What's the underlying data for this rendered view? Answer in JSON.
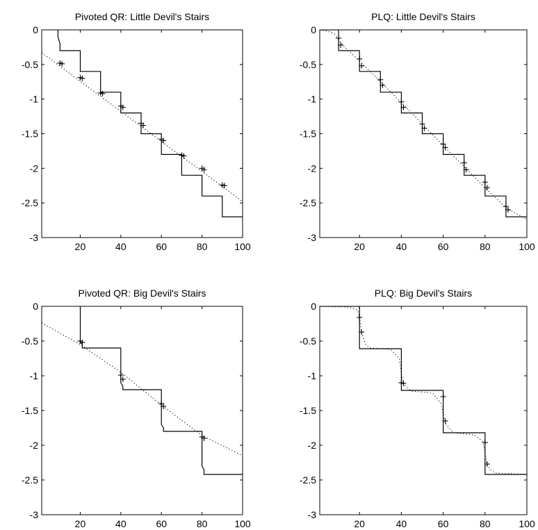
{
  "chart_data": [
    {
      "type": "line",
      "title": "Pivoted QR: Little Devil's Stairs",
      "xlim": [
        1,
        100
      ],
      "ylim": [
        -3,
        0
      ],
      "xticks": [
        20,
        40,
        60,
        80,
        100
      ],
      "yticks": [
        0,
        -0.5,
        -1,
        -1.5,
        -2,
        -2.5,
        -3
      ],
      "grid": false,
      "series": [
        {
          "style": "solid",
          "x": [
            9,
            9,
            10,
            10,
            20,
            20,
            30,
            30,
            40,
            40,
            50,
            50,
            60,
            60,
            70,
            70,
            80,
            80,
            90,
            90,
            100
          ],
          "y": [
            0,
            -0.1,
            -0.2,
            -0.3,
            -0.3,
            -0.6,
            -0.6,
            -0.9,
            -0.9,
            -1.2,
            -1.2,
            -1.5,
            -1.5,
            -1.8,
            -1.8,
            -2.1,
            -2.1,
            -2.4,
            -2.4,
            -2.7,
            -2.7
          ]
        },
        {
          "style": "dotted",
          "x": [
            1,
            100
          ],
          "y": [
            -0.33,
            -2.48
          ]
        },
        {
          "style": "markers",
          "x": [
            10,
            11,
            20,
            21,
            30,
            31,
            40,
            41,
            50,
            51,
            60,
            61,
            70,
            71,
            80,
            81,
            90,
            91
          ],
          "y": [
            -0.48,
            -0.49,
            -0.69,
            -0.7,
            -0.91,
            -0.92,
            -1.1,
            -1.12,
            -1.35,
            -1.38,
            -1.58,
            -1.6,
            -1.81,
            -1.82,
            -2.0,
            -2.02,
            -2.24,
            -2.25
          ]
        }
      ]
    },
    {
      "type": "line",
      "title": "PLQ: Little Devil's Stairs",
      "xlim": [
        1,
        100
      ],
      "ylim": [
        -3,
        0
      ],
      "xticks": [
        20,
        40,
        60,
        80,
        100
      ],
      "yticks": [
        0,
        -0.5,
        -1,
        -1.5,
        -2,
        -2.5,
        -3
      ],
      "grid": false,
      "series": [
        {
          "style": "solid",
          "x": [
            1,
            10,
            10,
            20,
            20,
            30,
            30,
            40,
            40,
            50,
            50,
            60,
            60,
            70,
            70,
            80,
            80,
            90,
            90,
            100
          ],
          "y": [
            0,
            0,
            -0.3,
            -0.3,
            -0.6,
            -0.6,
            -0.9,
            -0.9,
            -1.2,
            -1.2,
            -1.5,
            -1.5,
            -1.8,
            -1.8,
            -2.1,
            -2.1,
            -2.4,
            -2.4,
            -2.7,
            -2.7
          ]
        },
        {
          "style": "dotted",
          "x": [
            1,
            5,
            8,
            10,
            12,
            20,
            30,
            40,
            50,
            60,
            70,
            80,
            90,
            100
          ],
          "y": [
            0,
            -0.02,
            -0.06,
            -0.14,
            -0.22,
            -0.45,
            -0.75,
            -1.05,
            -1.36,
            -1.67,
            -1.98,
            -2.28,
            -2.57,
            -2.74
          ]
        },
        {
          "style": "markers",
          "x": [
            10,
            11,
            20,
            21,
            30,
            31,
            40,
            41,
            50,
            51,
            60,
            61,
            70,
            71,
            80,
            81,
            90,
            91
          ],
          "y": [
            -0.12,
            -0.22,
            -0.42,
            -0.52,
            -0.72,
            -0.8,
            -1.04,
            -1.12,
            -1.36,
            -1.42,
            -1.65,
            -1.7,
            -1.92,
            -2.02,
            -2.2,
            -2.28,
            -2.55,
            -2.6
          ]
        }
      ]
    },
    {
      "type": "line",
      "title": "Pivoted QR: Big Devil's Stairs",
      "xlim": [
        1,
        100
      ],
      "ylim": [
        -3,
        0
      ],
      "xticks": [
        20,
        40,
        60,
        80,
        100
      ],
      "yticks": [
        0,
        -0.5,
        -1,
        -1.5,
        -2,
        -2.5,
        -3
      ],
      "grid": false,
      "series": [
        {
          "style": "solid",
          "x": [
            20,
            20,
            21,
            21,
            40,
            40,
            41,
            41,
            60,
            60,
            61,
            61,
            80,
            80,
            81,
            81,
            100
          ],
          "y": [
            0,
            -0.5,
            -0.55,
            -0.6,
            -0.6,
            -1.1,
            -1.15,
            -1.2,
            -1.2,
            -1.7,
            -1.75,
            -1.8,
            -1.8,
            -2.3,
            -2.35,
            -2.42,
            -2.42
          ]
        },
        {
          "style": "dotted",
          "x": [
            1,
            20,
            40,
            60,
            80,
            100
          ],
          "y": [
            -0.24,
            -0.55,
            -0.95,
            -1.42,
            -1.86,
            -2.15
          ]
        },
        {
          "style": "markers",
          "x": [
            20,
            21,
            40,
            41,
            60,
            61,
            80,
            81
          ],
          "y": [
            -0.5,
            -0.52,
            -0.99,
            -1.05,
            -1.4,
            -1.44,
            -1.88,
            -1.9
          ]
        }
      ]
    },
    {
      "type": "line",
      "title": "PLQ: Big Devil's Stairs",
      "xlim": [
        1,
        100
      ],
      "ylim": [
        -3,
        0
      ],
      "xticks": [
        20,
        40,
        60,
        80,
        100
      ],
      "yticks": [
        0,
        -0.5,
        -1,
        -1.5,
        -2,
        -2.5,
        -3
      ],
      "grid": false,
      "series": [
        {
          "style": "solid",
          "x": [
            1,
            20,
            20,
            40,
            40,
            60,
            60,
            80,
            80,
            100
          ],
          "y": [
            0,
            0,
            -0.61,
            -0.61,
            -1.21,
            -1.21,
            -1.82,
            -1.82,
            -2.42,
            -2.42
          ]
        },
        {
          "style": "dotted",
          "x": [
            1,
            15,
            19,
            20,
            21,
            23,
            25,
            35,
            39,
            40,
            41,
            43,
            45,
            55,
            59,
            60,
            61,
            63,
            65,
            75,
            79,
            80,
            81,
            83,
            85,
            100
          ],
          "y": [
            0,
            -0.01,
            -0.05,
            -0.15,
            -0.38,
            -0.55,
            -0.6,
            -0.62,
            -0.75,
            -0.95,
            -1.12,
            -1.18,
            -1.22,
            -1.25,
            -1.4,
            -1.55,
            -1.68,
            -1.76,
            -1.82,
            -1.85,
            -1.95,
            -2.1,
            -2.28,
            -2.36,
            -2.4,
            -2.42
          ]
        },
        {
          "style": "markers",
          "x": [
            20,
            21,
            40,
            41,
            60,
            61,
            80,
            81
          ],
          "y": [
            -0.16,
            -0.37,
            -1.1,
            -1.11,
            -1.3,
            -1.65,
            -1.96,
            -2.27
          ]
        }
      ]
    }
  ]
}
